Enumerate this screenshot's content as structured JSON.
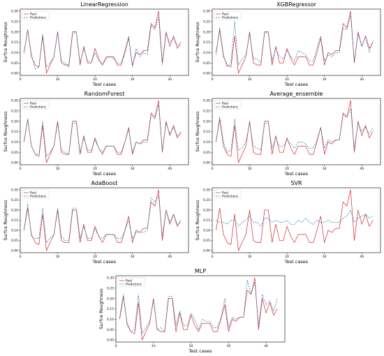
{
  "chart_data": [
    {
      "type": "line",
      "title": "LinearRegression",
      "xlabel": "Test cases",
      "ylabel": "Surfce Roughness",
      "xlim": [
        0,
        45
      ],
      "ylim": [
        -0.01,
        0.31
      ],
      "xticks": [
        0,
        10,
        20,
        30,
        40
      ],
      "yticks": [
        0.0,
        0.05,
        0.1,
        0.15,
        0.2,
        0.25,
        0.3
      ],
      "x": [
        1,
        2,
        3,
        4,
        5,
        6,
        7,
        8,
        9,
        10,
        11,
        12,
        13,
        14,
        15,
        16,
        17,
        18,
        19,
        20,
        21,
        22,
        23,
        24,
        25,
        26,
        27,
        28,
        29,
        30,
        31,
        32,
        33,
        34,
        35,
        36,
        37,
        38,
        39,
        40,
        41,
        42,
        43
      ],
      "series": [
        {
          "name": "Real",
          "color": "#d62728",
          "dash": "solid",
          "values": [
            0.1,
            0.21,
            0.08,
            0.04,
            0.03,
            0.18,
            0.0,
            0.04,
            0.08,
            0.2,
            0.05,
            0.04,
            0.04,
            0.2,
            0.2,
            0.04,
            0.13,
            0.05,
            0.05,
            0.12,
            0.07,
            0.04,
            0.08,
            0.08,
            0.08,
            0.04,
            0.04,
            0.1,
            0.17,
            0.04,
            0.1,
            0.09,
            0.11,
            0.11,
            0.24,
            0.22,
            0.3,
            0.05,
            0.2,
            0.13,
            0.18,
            0.12,
            0.15
          ]
        },
        {
          "name": "Predictions",
          "color": "#1f77b4",
          "dash": "dashed",
          "values": [
            0.1,
            0.21,
            0.09,
            0.02,
            0.03,
            0.19,
            0.03,
            0.05,
            0.08,
            0.2,
            0.06,
            0.05,
            0.03,
            0.19,
            0.2,
            0.05,
            0.12,
            0.06,
            0.05,
            0.1,
            0.06,
            0.04,
            0.07,
            0.08,
            0.07,
            0.05,
            0.05,
            0.11,
            0.18,
            0.03,
            0.12,
            0.08,
            0.1,
            0.09,
            0.23,
            0.21,
            0.27,
            0.04,
            0.19,
            0.15,
            0.17,
            0.14,
            0.13
          ]
        }
      ],
      "legend": "top-left"
    },
    {
      "type": "line",
      "title": "XGBRegressor",
      "xlabel": "Test cases",
      "ylabel": "Surfce Roughness",
      "xlim": [
        0,
        45
      ],
      "ylim": [
        -0.01,
        0.31
      ],
      "xticks": [
        0,
        10,
        20,
        30,
        40
      ],
      "yticks": [
        0.0,
        0.05,
        0.1,
        0.15,
        0.2,
        0.25,
        0.3
      ],
      "x": [
        1,
        2,
        3,
        4,
        5,
        6,
        7,
        8,
        9,
        10,
        11,
        12,
        13,
        14,
        15,
        16,
        17,
        18,
        19,
        20,
        21,
        22,
        23,
        24,
        25,
        26,
        27,
        28,
        29,
        30,
        31,
        32,
        33,
        34,
        35,
        36,
        37,
        38,
        39,
        40,
        41,
        42,
        43
      ],
      "series": [
        {
          "name": "Real",
          "color": "#d62728",
          "dash": "solid",
          "values": [
            0.1,
            0.21,
            0.08,
            0.04,
            0.03,
            0.18,
            0.0,
            0.04,
            0.08,
            0.2,
            0.05,
            0.04,
            0.04,
            0.2,
            0.2,
            0.04,
            0.13,
            0.05,
            0.05,
            0.12,
            0.07,
            0.04,
            0.08,
            0.08,
            0.08,
            0.04,
            0.04,
            0.1,
            0.17,
            0.04,
            0.1,
            0.09,
            0.11,
            0.11,
            0.24,
            0.22,
            0.3,
            0.05,
            0.2,
            0.13,
            0.18,
            0.12,
            0.15
          ]
        },
        {
          "name": "Predictions",
          "color": "#1f77b4",
          "dash": "dashed",
          "values": [
            0.09,
            0.22,
            0.09,
            0.03,
            0.05,
            0.25,
            0.04,
            0.07,
            0.09,
            0.19,
            0.07,
            0.07,
            0.05,
            0.2,
            0.19,
            0.06,
            0.12,
            0.08,
            0.07,
            0.11,
            0.08,
            0.06,
            0.11,
            0.1,
            0.09,
            0.06,
            0.06,
            0.12,
            0.18,
            0.06,
            0.09,
            0.08,
            0.1,
            0.1,
            0.22,
            0.21,
            0.28,
            0.06,
            0.19,
            0.13,
            0.18,
            0.1,
            0.16
          ]
        }
      ],
      "legend": "top-left"
    },
    {
      "type": "line",
      "title": "RandomForest",
      "xlabel": "Test cases",
      "ylabel": "Surfce Roughness",
      "xlim": [
        0,
        45
      ],
      "ylim": [
        -0.01,
        0.31
      ],
      "xticks": [
        0,
        10,
        20,
        30,
        40
      ],
      "yticks": [
        0.0,
        0.05,
        0.1,
        0.15,
        0.2,
        0.25,
        0.3
      ],
      "x": [
        1,
        2,
        3,
        4,
        5,
        6,
        7,
        8,
        9,
        10,
        11,
        12,
        13,
        14,
        15,
        16,
        17,
        18,
        19,
        20,
        21,
        22,
        23,
        24,
        25,
        26,
        27,
        28,
        29,
        30,
        31,
        32,
        33,
        34,
        35,
        36,
        37,
        38,
        39,
        40,
        41,
        42,
        43
      ],
      "series": [
        {
          "name": "Real",
          "color": "#d62728",
          "dash": "solid",
          "values": [
            0.1,
            0.21,
            0.08,
            0.04,
            0.03,
            0.18,
            0.0,
            0.04,
            0.08,
            0.2,
            0.05,
            0.04,
            0.04,
            0.2,
            0.2,
            0.04,
            0.13,
            0.05,
            0.05,
            0.12,
            0.07,
            0.04,
            0.08,
            0.08,
            0.08,
            0.04,
            0.04,
            0.1,
            0.17,
            0.04,
            0.1,
            0.09,
            0.11,
            0.11,
            0.24,
            0.22,
            0.3,
            0.05,
            0.2,
            0.13,
            0.18,
            0.12,
            0.15
          ]
        },
        {
          "name": "Predictions",
          "color": "#1f77b4",
          "dash": "dashed",
          "values": [
            0.1,
            0.21,
            0.08,
            0.04,
            0.04,
            0.2,
            0.03,
            0.05,
            0.08,
            0.19,
            0.06,
            0.05,
            0.04,
            0.19,
            0.19,
            0.05,
            0.12,
            0.06,
            0.06,
            0.11,
            0.07,
            0.05,
            0.08,
            0.08,
            0.08,
            0.05,
            0.05,
            0.1,
            0.16,
            0.05,
            0.1,
            0.09,
            0.1,
            0.1,
            0.23,
            0.21,
            0.28,
            0.06,
            0.19,
            0.14,
            0.17,
            0.13,
            0.14
          ]
        }
      ],
      "legend": "top-left"
    },
    {
      "type": "line",
      "title": "Average_ensemble",
      "xlabel": "Test cases",
      "ylabel": "Surfce Roughness",
      "xlim": [
        0,
        45
      ],
      "ylim": [
        -0.01,
        0.31
      ],
      "xticks": [
        0,
        10,
        20,
        30,
        40
      ],
      "yticks": [
        0.0,
        0.05,
        0.1,
        0.15,
        0.2,
        0.25,
        0.3
      ],
      "x": [
        1,
        2,
        3,
        4,
        5,
        6,
        7,
        8,
        9,
        10,
        11,
        12,
        13,
        14,
        15,
        16,
        17,
        18,
        19,
        20,
        21,
        22,
        23,
        24,
        25,
        26,
        27,
        28,
        29,
        30,
        31,
        32,
        33,
        34,
        35,
        36,
        37,
        38,
        39,
        40,
        41,
        42,
        43
      ],
      "series": [
        {
          "name": "Real",
          "color": "#d62728",
          "dash": "solid",
          "values": [
            0.1,
            0.21,
            0.08,
            0.04,
            0.03,
            0.18,
            0.0,
            0.04,
            0.08,
            0.2,
            0.05,
            0.04,
            0.04,
            0.2,
            0.2,
            0.04,
            0.13,
            0.05,
            0.05,
            0.12,
            0.07,
            0.04,
            0.08,
            0.08,
            0.08,
            0.04,
            0.04,
            0.1,
            0.17,
            0.04,
            0.1,
            0.09,
            0.11,
            0.11,
            0.24,
            0.22,
            0.3,
            0.05,
            0.2,
            0.13,
            0.18,
            0.12,
            0.15
          ]
        },
        {
          "name": "Predictions",
          "color": "#1f77b4",
          "dash": "dashed",
          "values": [
            0.1,
            0.22,
            0.1,
            0.05,
            0.06,
            0.21,
            0.06,
            0.07,
            0.1,
            0.19,
            0.08,
            0.07,
            0.06,
            0.19,
            0.19,
            0.07,
            0.12,
            0.08,
            0.08,
            0.11,
            0.09,
            0.07,
            0.1,
            0.1,
            0.09,
            0.07,
            0.07,
            0.11,
            0.17,
            0.07,
            0.11,
            0.1,
            0.11,
            0.11,
            0.23,
            0.22,
            0.26,
            0.07,
            0.19,
            0.15,
            0.17,
            0.14,
            0.17
          ]
        }
      ],
      "legend": "top-left"
    },
    {
      "type": "line",
      "title": "AdaBoost",
      "xlabel": "Test cases",
      "ylabel": "Surfce Roughness",
      "xlim": [
        0,
        45
      ],
      "ylim": [
        -0.01,
        0.31
      ],
      "xticks": [
        0,
        10,
        20,
        30,
        40
      ],
      "yticks": [
        0.0,
        0.05,
        0.1,
        0.15,
        0.2,
        0.25,
        0.3
      ],
      "x": [
        1,
        2,
        3,
        4,
        5,
        6,
        7,
        8,
        9,
        10,
        11,
        12,
        13,
        14,
        15,
        16,
        17,
        18,
        19,
        20,
        21,
        22,
        23,
        24,
        25,
        26,
        27,
        28,
        29,
        30,
        31,
        32,
        33,
        34,
        35,
        36,
        37,
        38,
        39,
        40,
        41,
        42,
        43
      ],
      "series": [
        {
          "name": "Real",
          "color": "#d62728",
          "dash": "solid",
          "values": [
            0.1,
            0.21,
            0.08,
            0.04,
            0.03,
            0.18,
            0.0,
            0.04,
            0.08,
            0.2,
            0.05,
            0.04,
            0.04,
            0.2,
            0.2,
            0.04,
            0.13,
            0.05,
            0.05,
            0.12,
            0.07,
            0.04,
            0.08,
            0.08,
            0.08,
            0.04,
            0.04,
            0.1,
            0.17,
            0.04,
            0.1,
            0.09,
            0.11,
            0.11,
            0.24,
            0.22,
            0.3,
            0.05,
            0.2,
            0.13,
            0.18,
            0.12,
            0.15
          ]
        },
        {
          "name": "Predictions",
          "color": "#1f77b4",
          "dash": "dashed",
          "values": [
            0.1,
            0.23,
            0.07,
            0.06,
            0.06,
            0.21,
            0.04,
            0.06,
            0.08,
            0.21,
            0.07,
            0.05,
            0.05,
            0.21,
            0.21,
            0.06,
            0.12,
            0.06,
            0.06,
            0.11,
            0.07,
            0.06,
            0.08,
            0.08,
            0.08,
            0.06,
            0.06,
            0.1,
            0.15,
            0.06,
            0.09,
            0.09,
            0.09,
            0.1,
            0.26,
            0.24,
            0.27,
            0.07,
            0.2,
            0.14,
            0.18,
            0.13,
            0.14
          ]
        }
      ],
      "legend": "top-left"
    },
    {
      "type": "line",
      "title": "SVR",
      "xlabel": "Test cases",
      "ylabel": "Surfce Roughness",
      "xlim": [
        0,
        45
      ],
      "ylim": [
        -0.01,
        0.31
      ],
      "xticks": [
        0,
        10,
        20,
        30,
        40
      ],
      "yticks": [
        0.0,
        0.05,
        0.1,
        0.15,
        0.2,
        0.25,
        0.3
      ],
      "x": [
        1,
        2,
        3,
        4,
        5,
        6,
        7,
        8,
        9,
        10,
        11,
        12,
        13,
        14,
        15,
        16,
        17,
        18,
        19,
        20,
        21,
        22,
        23,
        24,
        25,
        26,
        27,
        28,
        29,
        30,
        31,
        32,
        33,
        34,
        35,
        36,
        37,
        38,
        39,
        40,
        41,
        42,
        43
      ],
      "series": [
        {
          "name": "Real",
          "color": "#d62728",
          "dash": "solid",
          "values": [
            0.1,
            0.21,
            0.08,
            0.04,
            0.03,
            0.18,
            0.0,
            0.04,
            0.08,
            0.2,
            0.05,
            0.04,
            0.04,
            0.2,
            0.2,
            0.04,
            0.13,
            0.05,
            0.05,
            0.12,
            0.07,
            0.04,
            0.08,
            0.08,
            0.08,
            0.04,
            0.04,
            0.1,
            0.17,
            0.04,
            0.1,
            0.09,
            0.11,
            0.11,
            0.24,
            0.22,
            0.3,
            0.05,
            0.2,
            0.13,
            0.18,
            0.12,
            0.15
          ]
        },
        {
          "name": "Predictions",
          "color": "#1f77b4",
          "dash": "dashed",
          "values": [
            0.15,
            0.14,
            0.14,
            0.13,
            0.15,
            0.15,
            0.12,
            0.14,
            0.15,
            0.17,
            0.14,
            0.14,
            0.12,
            0.16,
            0.16,
            0.14,
            0.15,
            0.14,
            0.14,
            0.15,
            0.13,
            0.13,
            0.15,
            0.14,
            0.16,
            0.14,
            0.13,
            0.15,
            0.14,
            0.14,
            0.15,
            0.14,
            0.14,
            0.14,
            0.16,
            0.17,
            0.2,
            0.14,
            0.16,
            0.17,
            0.18,
            0.16,
            0.17
          ]
        }
      ],
      "legend": "top-left"
    },
    {
      "type": "line",
      "title": "MLP",
      "xlabel": "Test cases",
      "ylabel": "Surfce Roughness",
      "xlim": [
        0,
        45
      ],
      "ylim": [
        -0.01,
        0.31
      ],
      "xticks": [
        0,
        10,
        20,
        30,
        40
      ],
      "yticks": [
        0.0,
        0.05,
        0.1,
        0.15,
        0.2,
        0.25,
        0.3
      ],
      "x": [
        1,
        2,
        3,
        4,
        5,
        6,
        7,
        8,
        9,
        10,
        11,
        12,
        13,
        14,
        15,
        16,
        17,
        18,
        19,
        20,
        21,
        22,
        23,
        24,
        25,
        26,
        27,
        28,
        29,
        30,
        31,
        32,
        33,
        34,
        35,
        36,
        37,
        38,
        39,
        40,
        41,
        42,
        43
      ],
      "series": [
        {
          "name": "Real",
          "color": "#d62728",
          "dash": "solid",
          "values": [
            0.1,
            0.21,
            0.08,
            0.04,
            0.03,
            0.18,
            0.0,
            0.04,
            0.08,
            0.2,
            0.05,
            0.04,
            0.04,
            0.2,
            0.2,
            0.04,
            0.13,
            0.05,
            0.05,
            0.12,
            0.07,
            0.04,
            0.08,
            0.08,
            0.08,
            0.04,
            0.04,
            0.1,
            0.17,
            0.04,
            0.1,
            0.09,
            0.11,
            0.11,
            0.24,
            0.22,
            0.3,
            0.05,
            0.2,
            0.13,
            0.18,
            0.12,
            0.15
          ]
        },
        {
          "name": "Predictions",
          "color": "#1f77b4",
          "dash": "dashed",
          "values": [
            0.11,
            0.22,
            0.07,
            0.04,
            0.05,
            0.22,
            0.03,
            0.06,
            0.09,
            0.19,
            0.05,
            0.06,
            0.04,
            0.21,
            0.21,
            0.07,
            0.14,
            0.07,
            0.07,
            0.13,
            0.1,
            0.05,
            0.1,
            0.09,
            0.09,
            0.06,
            0.06,
            0.11,
            0.2,
            0.06,
            0.11,
            0.1,
            0.11,
            0.11,
            0.29,
            0.22,
            0.28,
            0.07,
            0.22,
            0.17,
            0.19,
            0.14,
            0.2
          ]
        }
      ],
      "legend": "top-left"
    }
  ]
}
